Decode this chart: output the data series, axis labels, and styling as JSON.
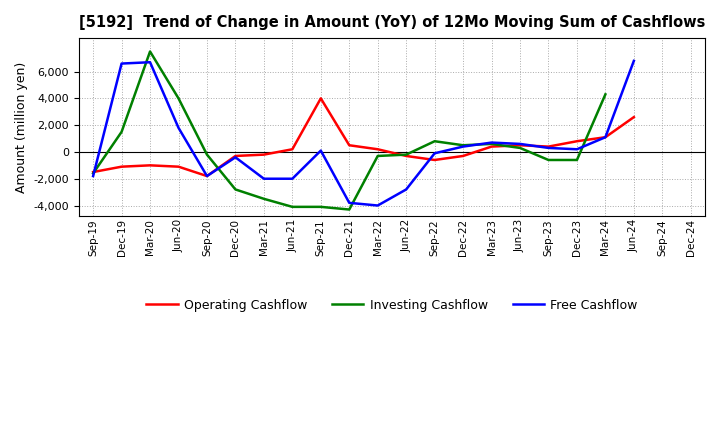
{
  "title": "[5192]  Trend of Change in Amount (YoY) of 12Mo Moving Sum of Cashflows",
  "ylabel": "Amount (million yen)",
  "x_labels": [
    "Sep-19",
    "Dec-19",
    "Mar-20",
    "Jun-20",
    "Sep-20",
    "Dec-20",
    "Mar-21",
    "Jun-21",
    "Sep-21",
    "Dec-21",
    "Mar-22",
    "Jun-22",
    "Sep-22",
    "Dec-22",
    "Mar-23",
    "Jun-23",
    "Sep-23",
    "Dec-23",
    "Mar-24",
    "Jun-24",
    "Sep-24",
    "Dec-24"
  ],
  "operating": [
    -1500,
    -1100,
    -1000,
    -1100,
    -1800,
    -300,
    -200,
    200,
    4000,
    500,
    200,
    -300,
    -600,
    -300,
    400,
    500,
    400,
    800,
    1100,
    2600,
    null,
    null
  ],
  "investing": [
    -1600,
    1500,
    7500,
    4000,
    -200,
    -2800,
    -3500,
    -4100,
    -4100,
    -4300,
    -300,
    -200,
    800,
    500,
    600,
    300,
    -600,
    -600,
    4300,
    null,
    null,
    null
  ],
  "free": [
    -1800,
    6600,
    6700,
    1800,
    -1800,
    -400,
    -2000,
    -2000,
    100,
    -3800,
    -4000,
    -2800,
    -100,
    400,
    700,
    600,
    300,
    200,
    1100,
    6800,
    null,
    null
  ],
  "operating_color": "#ff0000",
  "investing_color": "#008000",
  "free_color": "#0000ff",
  "ylim": [
    -4800,
    8500
  ],
  "yticks": [
    -4000,
    -2000,
    0,
    2000,
    4000,
    6000
  ],
  "background_color": "#ffffff",
  "grid_color": "#aaaaaa"
}
